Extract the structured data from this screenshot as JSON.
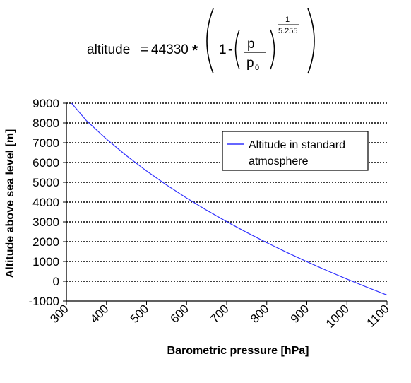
{
  "formula": {
    "lhs": "altitude",
    "eq": "=",
    "constant": "44330",
    "times": "*",
    "one": "1",
    "minus": "-",
    "numerator": "p",
    "denominator_base": "p",
    "denominator_sub": "0",
    "exp_num": "1",
    "exp_den": "5.255"
  },
  "chart_data": {
    "type": "line",
    "title": "",
    "xlabel": "Barometric pressure [hPa]",
    "ylabel": "Altitude above sea level [m]",
    "xlim": [
      300,
      1100
    ],
    "ylim": [
      -1000,
      9000
    ],
    "xticks": [
      "300",
      "400",
      "500",
      "600",
      "700",
      "800",
      "900",
      "1000",
      "1100"
    ],
    "yticks": [
      "9000",
      "8000",
      "7000",
      "6000",
      "5000",
      "4000",
      "3000",
      "2000",
      "1000",
      "0",
      "-1000"
    ],
    "grid": "horizontal dotted",
    "legend_position": "top-right",
    "series": [
      {
        "name": "Altitude in standard atmosphere",
        "name_lines": [
          "Altitude in standard",
          "atmosphere"
        ],
        "color": "#3333ff",
        "x": [
          313,
          350,
          400,
          450,
          500,
          550,
          600,
          650,
          700,
          750,
          800,
          850,
          900,
          950,
          1000,
          1050,
          1100
        ],
        "y": [
          9000,
          8117,
          7185,
          6344,
          5574,
          4865,
          4206,
          3591,
          3012,
          2467,
          1949,
          1457,
          988,
          540,
          111,
          -302,
          -698
        ]
      }
    ]
  }
}
